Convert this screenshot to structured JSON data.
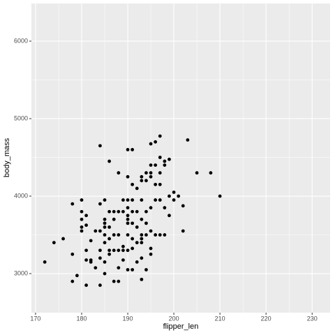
{
  "chart_data": {
    "type": "scatter",
    "x_label": "flipper_len",
    "y_label": "body_mass",
    "x": [
      172,
      174,
      176,
      178,
      178,
      178,
      179,
      180,
      180,
      180,
      180,
      180,
      181,
      181,
      181,
      181,
      181,
      182,
      182,
      182,
      183,
      183,
      184,
      184,
      184,
      184,
      184,
      184,
      185,
      185,
      185,
      185,
      185,
      185,
      185,
      185,
      186,
      186,
      186,
      186,
      186,
      186,
      187,
      187,
      187,
      187,
      187,
      188,
      188,
      188,
      188,
      188,
      188,
      189,
      189,
      189,
      189,
      189,
      190,
      190,
      190,
      190,
      190,
      190,
      190,
      190,
      190,
      190,
      191,
      191,
      191,
      191,
      191,
      191,
      191,
      191,
      192,
      192,
      192,
      192,
      192,
      193,
      193,
      193,
      193,
      193,
      193,
      193,
      193,
      193,
      194,
      194,
      194,
      194,
      194,
      194,
      195,
      195,
      195,
      195,
      195,
      195,
      195,
      195,
      196,
      196,
      196,
      196,
      196,
      197,
      197,
      197,
      197,
      197,
      197,
      198,
      198,
      198,
      198,
      199,
      199,
      199,
      200,
      200,
      201,
      202,
      202,
      203,
      205,
      208,
      210
    ],
    "values": [
      3150,
      3400,
      3450,
      3250,
      3900,
      2900,
      2975,
      3950,
      3800,
      3700,
      3600,
      3550,
      3750,
      3625,
      3300,
      3175,
      2850,
      3425,
      3175,
      3150,
      3075,
      3550,
      4650,
      3900,
      3550,
      3300,
      3200,
      2850,
      3950,
      3700,
      3650,
      3600,
      3500,
      3400,
      3150,
      3000,
      4450,
      3800,
      3600,
      3450,
      3300,
      3250,
      3800,
      3700,
      3500,
      3300,
      2900,
      4300,
      3800,
      3500,
      3300,
      3075,
      2900,
      3950,
      3800,
      3350,
      3300,
      3175,
      4600,
      4250,
      3950,
      3850,
      3750,
      3700,
      3650,
      3500,
      3300,
      3050,
      4600,
      4150,
      3950,
      3800,
      3650,
      3450,
      3325,
      3050,
      4100,
      3800,
      3600,
      3400,
      3150,
      4250,
      4200,
      3950,
      3700,
      3500,
      3450,
      3400,
      3200,
      2925,
      4300,
      4200,
      3800,
      3650,
      3500,
      3050,
      4675,
      4400,
      4300,
      4250,
      3850,
      3550,
      3325,
      3250,
      4700,
      4400,
      4150,
      3950,
      3500,
      4775,
      4500,
      4300,
      4150,
      3950,
      3500,
      4450,
      4400,
      3850,
      3500,
      4475,
      4000,
      3750,
      4050,
      3950,
      4000,
      3875,
      3550,
      4725,
      4300,
      4300,
      4000
    ],
    "color": "#000000",
    "xlim": [
      169.1,
      233.9
    ],
    "xticks": [
      170,
      180,
      190,
      200,
      210,
      220,
      230
    ],
    "ylim": [
      2496,
      6486
    ],
    "yticks": [
      3000,
      4000,
      5000,
      6000
    ],
    "grid": true,
    "minor_grid": true,
    "panel_color": "#ebebeb"
  }
}
